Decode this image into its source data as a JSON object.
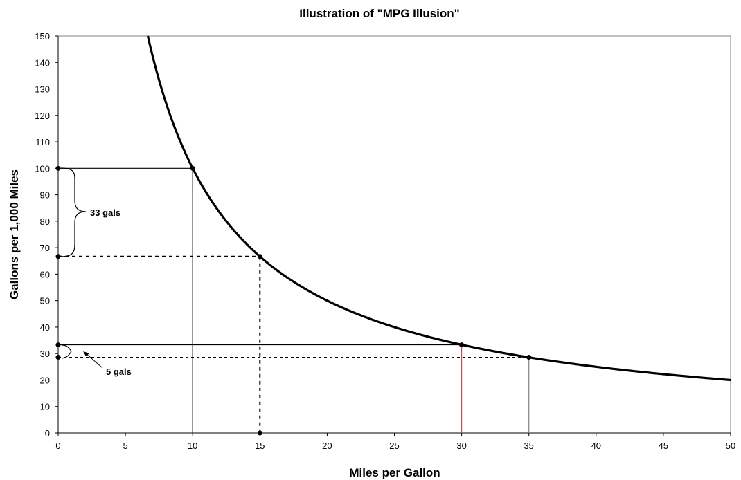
{
  "chart_data": {
    "type": "line",
    "title": "Illustration of \"MPG Illusion\"",
    "xlabel": "Miles per Gallon",
    "ylabel": "Gallons per 1,000 Miles",
    "xlim": [
      0,
      50
    ],
    "ylim": [
      0,
      150
    ],
    "x_ticks": [
      0,
      5,
      10,
      15,
      20,
      25,
      30,
      35,
      40,
      45,
      50
    ],
    "y_ticks": [
      0,
      10,
      20,
      30,
      40,
      50,
      60,
      70,
      80,
      90,
      100,
      110,
      120,
      130,
      140,
      150
    ],
    "grid": false,
    "legend": "none",
    "series": [
      {
        "function": "y = 1000 / x",
        "x": [
          6.67,
          7,
          7.5,
          8,
          8.5,
          9,
          9.5,
          10,
          11,
          12,
          13,
          14,
          15,
          16,
          18,
          20,
          22,
          25,
          28,
          30,
          32,
          35,
          38,
          40,
          42,
          45,
          48,
          50
        ],
        "values": [
          150,
          142.9,
          133.3,
          125,
          117.6,
          111.1,
          105.3,
          100,
          90.9,
          83.3,
          76.9,
          71.4,
          66.7,
          62.5,
          55.6,
          50,
          45.5,
          40,
          35.7,
          33.3,
          31.3,
          28.6,
          26.3,
          25,
          23.8,
          22.2,
          20.8,
          20
        ],
        "color": "#000000"
      }
    ],
    "highlighted_points": [
      {
        "x": 10,
        "y": 100
      },
      {
        "x": 15,
        "y": 66.7
      },
      {
        "x": 30,
        "y": 33.3
      },
      {
        "x": 35,
        "y": 28.6
      }
    ],
    "reference_lines": [
      {
        "from": [
          0,
          100
        ],
        "to": [
          10,
          100
        ],
        "style": "solid",
        "color": "#000000"
      },
      {
        "from": [
          10,
          100
        ],
        "to": [
          10,
          0
        ],
        "style": "solid",
        "color": "#000000"
      },
      {
        "from": [
          0,
          66.7
        ],
        "to": [
          15,
          66.7
        ],
        "style": "dashed",
        "color": "#000000"
      },
      {
        "from": [
          15,
          66.7
        ],
        "to": [
          15,
          0
        ],
        "style": "dashed",
        "color": "#000000"
      },
      {
        "from": [
          0,
          33.3
        ],
        "to": [
          30,
          33.3
        ],
        "style": "solid",
        "color": "#000000"
      },
      {
        "from": [
          30,
          33.3
        ],
        "to": [
          30,
          0
        ],
        "style": "solid",
        "color": "#c0504d"
      },
      {
        "from": [
          0,
          28.6
        ],
        "to": [
          35,
          28.6
        ],
        "style": "dashed",
        "color": "#000000"
      },
      {
        "from": [
          35,
          28.6
        ],
        "to": [
          35,
          0
        ],
        "style": "solid",
        "color": "#808080"
      }
    ],
    "axis_points": [
      {
        "x": 0,
        "y": 100
      },
      {
        "x": 0,
        "y": 66.7
      },
      {
        "x": 0,
        "y": 33.3
      },
      {
        "x": 0,
        "y": 28.6
      },
      {
        "x": 15,
        "y": 0
      }
    ],
    "annotations": [
      {
        "text": "33 gals",
        "y_from": 100,
        "y_to": 66.7
      },
      {
        "text": "5 gals",
        "y_from": 33.3,
        "y_to": 28.6
      }
    ]
  }
}
